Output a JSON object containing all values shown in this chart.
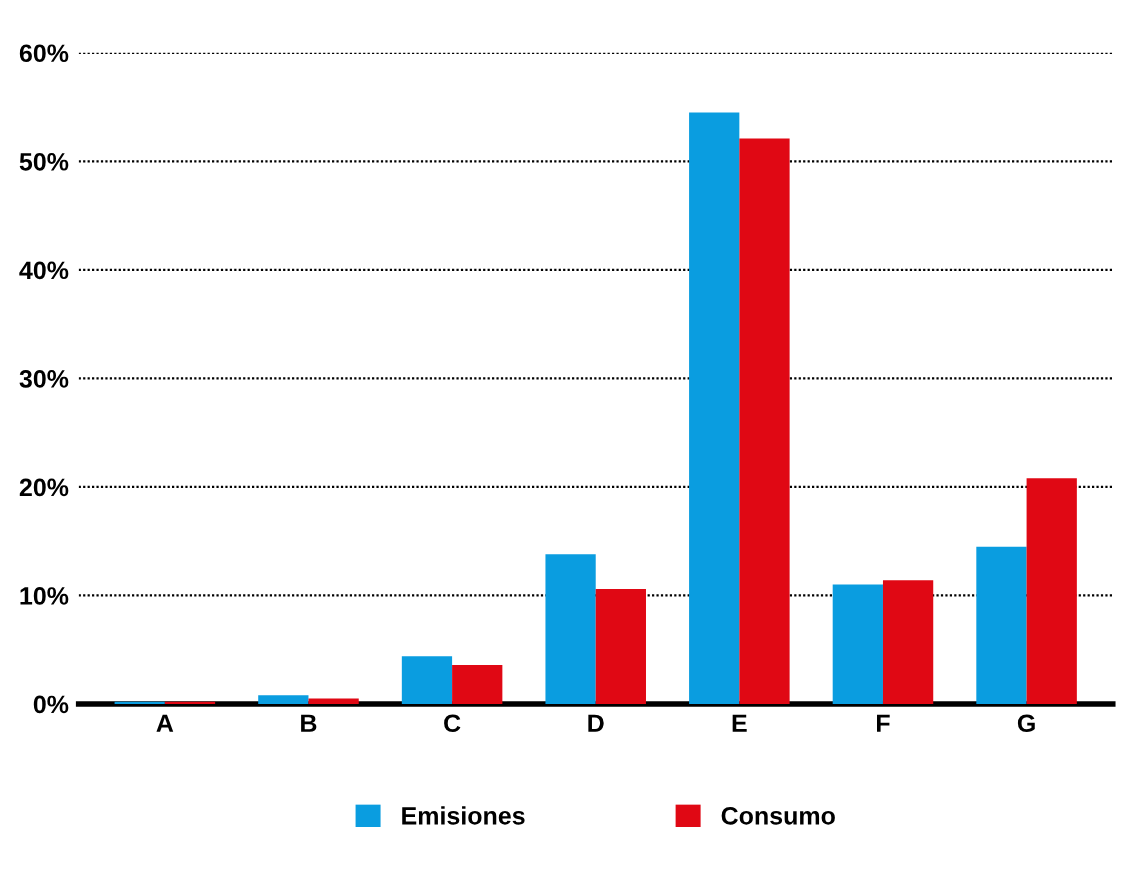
{
  "chart_data": {
    "type": "bar",
    "categories": [
      "A",
      "B",
      "C",
      "D",
      "E",
      "F",
      "G"
    ],
    "series": [
      {
        "name": "Emisiones",
        "color": "#0a9de0",
        "values": [
          0.2,
          0.8,
          4.4,
          13.8,
          54.5,
          11.0,
          14.5
        ]
      },
      {
        "name": "Consumo",
        "color": "#e00814",
        "values": [
          0.2,
          0.5,
          3.6,
          10.6,
          52.1,
          11.4,
          20.8
        ]
      }
    ],
    "ylim": [
      0,
      60
    ],
    "yticks": [
      {
        "value": 0,
        "label": "0%"
      },
      {
        "value": 10,
        "label": "10%"
      },
      {
        "value": 20,
        "label": "20%"
      },
      {
        "value": 30,
        "label": "30%"
      },
      {
        "value": 40,
        "label": "40%"
      },
      {
        "value": 50,
        "label": "50%"
      },
      {
        "value": 60,
        "label": "60%"
      }
    ],
    "grid": "y",
    "legend": "bottom"
  }
}
